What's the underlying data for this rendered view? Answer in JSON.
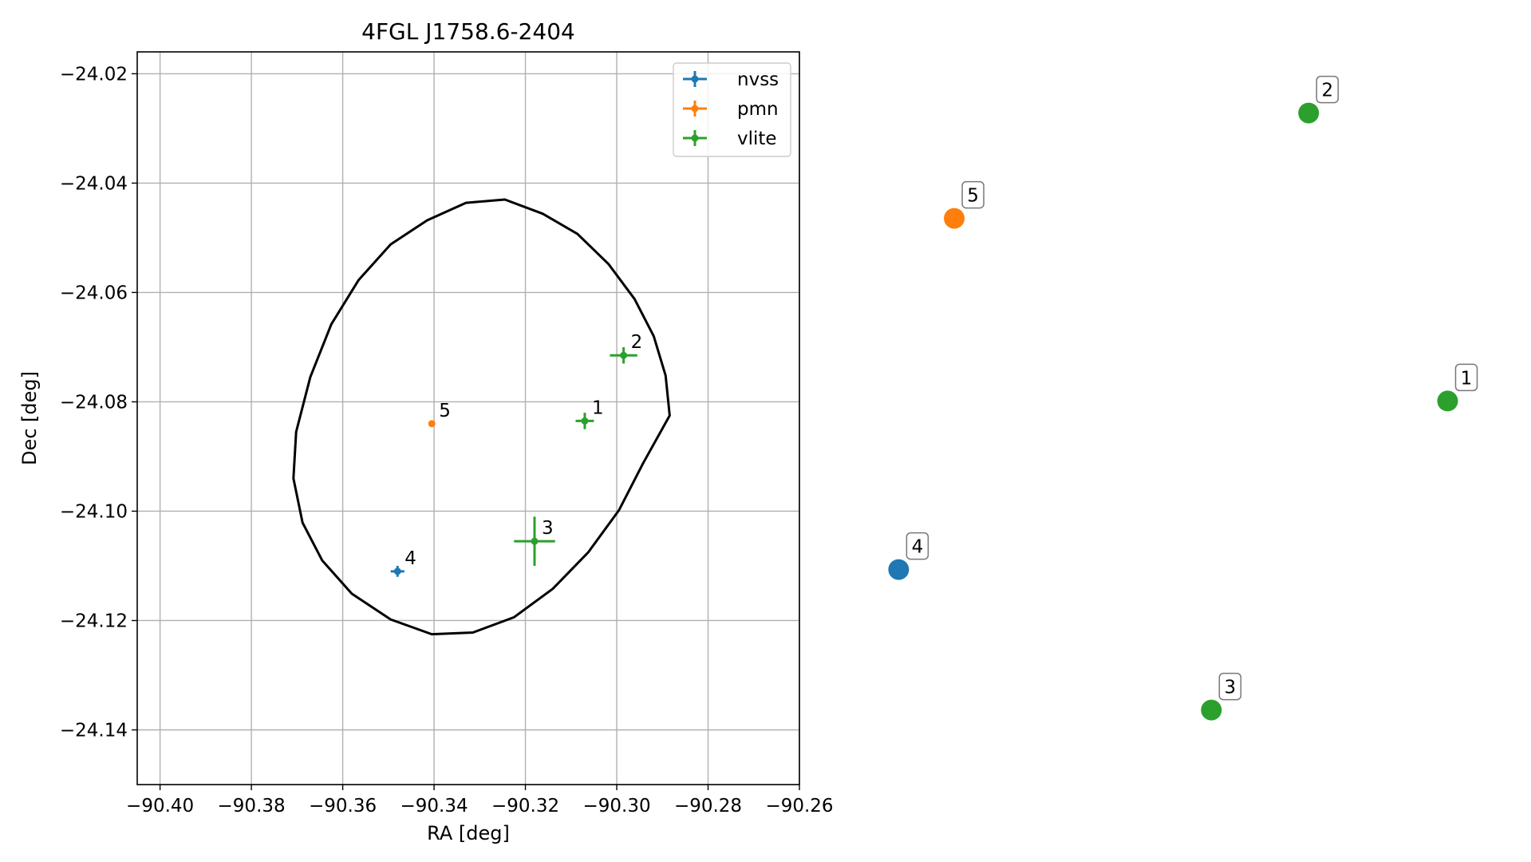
{
  "chart_data": [
    {
      "type": "scatter",
      "title": "4FGL J1758.6-2404",
      "xlabel": "RA [deg]",
      "ylabel": "Dec [deg]",
      "xlim": [
        -90.405,
        -90.26
      ],
      "ylim": [
        -24.15,
        -24.016
      ],
      "xticks": [
        -90.4,
        -90.38,
        -90.36,
        -90.34,
        -90.32,
        -90.3,
        -90.28,
        -90.26
      ],
      "xtick_labels": [
        "−90.40",
        "−90.38",
        "−90.36",
        "−90.34",
        "−90.32",
        "−90.30",
        "−90.28",
        "−90.26"
      ],
      "yticks": [
        -24.02,
        -24.04,
        -24.06,
        -24.08,
        -24.1,
        -24.12,
        -24.14
      ],
      "ytick_labels": [
        "−24.02",
        "−24.04",
        "−24.06",
        "−24.08",
        "−24.10",
        "−24.12",
        "−24.14"
      ],
      "grid": true,
      "legend_position": "top-right",
      "series": [
        {
          "name": "nvss",
          "color": "#1f77b4",
          "points": [
            {
              "label": "4",
              "x": -90.348,
              "y": -24.111,
              "xerr": 0.0015,
              "yerr": 0.001
            }
          ]
        },
        {
          "name": "pmn",
          "color": "#ff7f0e",
          "points": [
            {
              "label": "5",
              "x": -90.3405,
              "y": -24.084,
              "xerr": 0,
              "yerr": 0
            }
          ]
        },
        {
          "name": "vlite",
          "color": "#2ca02c",
          "points": [
            {
              "label": "1",
              "x": -90.307,
              "y": -24.0835,
              "xerr": 0.002,
              "yerr": 0.0015
            },
            {
              "label": "2",
              "x": -90.2985,
              "y": -24.0715,
              "xerr": 0.003,
              "yerr": 0.0015
            },
            {
              "label": "3",
              "x": -90.318,
              "y": -24.1055,
              "xerr": 0.0045,
              "yerr": 0.0045
            }
          ]
        }
      ],
      "ellipse": {
        "center": [
          -90.3255,
          -24.0825
        ],
        "points": [
          [
            -90.2884,
            -24.0825
          ],
          [
            -90.2893,
            -24.0752
          ],
          [
            -90.2919,
            -24.068
          ],
          [
            -90.2961,
            -24.0612
          ],
          [
            -90.3018,
            -24.0548
          ],
          [
            -90.3086,
            -24.0493
          ],
          [
            -90.3162,
            -24.0456
          ],
          [
            -90.3245,
            -24.043
          ],
          [
            -90.333,
            -24.0436
          ],
          [
            -90.3415,
            -24.0468
          ],
          [
            -90.3495,
            -24.0512
          ],
          [
            -90.3565,
            -24.0577
          ],
          [
            -90.3625,
            -24.0658
          ],
          [
            -90.3671,
            -24.0755
          ],
          [
            -90.3702,
            -24.0855
          ],
          [
            -90.3708,
            -24.094
          ],
          [
            -90.3688,
            -24.1021
          ],
          [
            -90.3645,
            -24.109
          ],
          [
            -90.358,
            -24.1151
          ],
          [
            -90.3495,
            -24.1198
          ],
          [
            -90.3405,
            -24.1225
          ],
          [
            -90.3315,
            -24.1222
          ],
          [
            -90.3225,
            -24.1194
          ],
          [
            -90.314,
            -24.1142
          ],
          [
            -90.3062,
            -24.1075
          ],
          [
            -90.2995,
            -24.0998
          ],
          [
            -90.2942,
            -24.0912
          ]
        ]
      }
    },
    {
      "type": "scatter",
      "xlim": [
        0,
        1
      ],
      "ylim": [
        0,
        1
      ],
      "axes": false,
      "series": [
        {
          "name": "nvss",
          "color": "#1f77b4",
          "points": [
            {
              "label": "4",
              "x": 0.09,
              "y": 0.28
            }
          ]
        },
        {
          "name": "pmn",
          "color": "#ff7f0e",
          "points": [
            {
              "label": "5",
              "x": 0.17,
              "y": 0.78
            }
          ]
        },
        {
          "name": "vlite",
          "color": "#2ca02c",
          "points": [
            {
              "label": "1",
              "x": 0.88,
              "y": 0.52
            },
            {
              "label": "2",
              "x": 0.68,
              "y": 0.93
            },
            {
              "label": "3",
              "x": 0.54,
              "y": 0.08
            }
          ]
        }
      ]
    }
  ]
}
